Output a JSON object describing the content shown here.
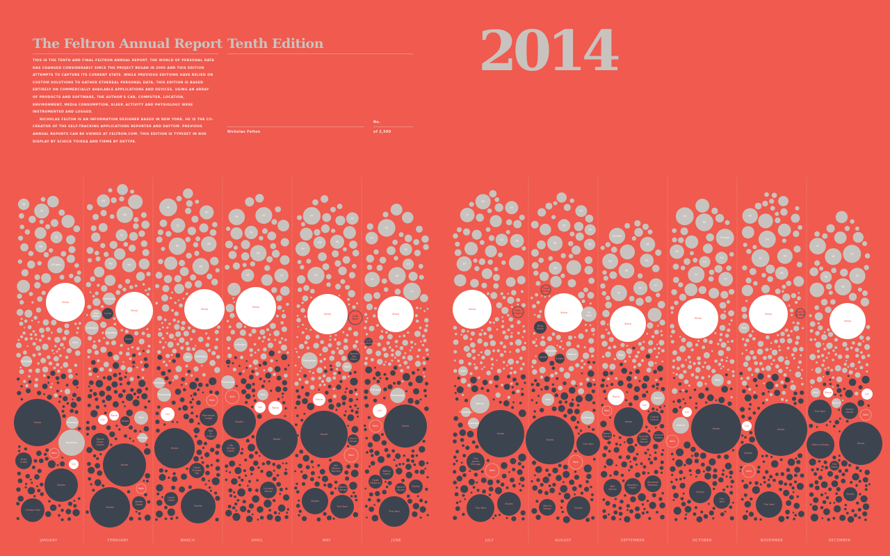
{
  "header": {
    "title": "The Feltron Annual Report",
    "edition": "Tenth Edition",
    "year": "2014",
    "intro": "This is the tenth and final Feltron Annual Report. The world of personal data has changed considerably since the project began in 2005 and this edition attempts to capture its current state. While previous editions have relied on custom solutions to gather ethereal personal data, this edition is based entirely on commercially available applications and devices. Using an array of products and software, the author's car, computer, location, environment, media consumption, sleep, activity and physiology were instrumented and logged.",
    "bio": "Nicholas Felton is an information designer based in New York. He is the co-creator of the self-tracking applications Reporter and Daytum. Previous annual reports can be viewed at feltron.com. This edition is typeset in Noe Display by Schick Toikka and Firme by Dstype.",
    "author": "Nicholas Felton",
    "number_label": "No.",
    "of_count": "of 2,500"
  },
  "colors": {
    "background": "#F05A4F",
    "app_bubble": "#C8C3BE",
    "location_bubble": "#3C4450",
    "sleep_bubble": "#FFFFFF",
    "transport_bubble": "#FFFFFF",
    "walk_ring": "#F7A59D"
  },
  "chart_data": {
    "type": "bubble",
    "months": [
      {
        "name": "January",
        "heart_rate_labels": [
          "50",
          "48",
          "60",
          "53 bpm",
          "52"
        ],
        "bubbles": [
          {
            "label": "Sleep",
            "kind": "sleep"
          },
          {
            "label": "Mail",
            "kind": "app"
          },
          {
            "label": "Facebook",
            "kind": "app"
          },
          {
            "label": "Home",
            "kind": "location"
          },
          {
            "label": "InDesign",
            "kind": "app"
          },
          {
            "label": "Numbers",
            "kind": "app"
          },
          {
            "label": "Walk",
            "kind": "walk"
          },
          {
            "label": "Bras Creek",
            "kind": "location"
          },
          {
            "label": "Car",
            "kind": "transport"
          },
          {
            "label": "Studio",
            "kind": "location"
          },
          {
            "label": "Christa Villa",
            "kind": "location"
          }
        ]
      },
      {
        "name": "February",
        "heart_rate_labels": [
          "48",
          "51",
          "55",
          "60",
          "63"
        ],
        "bubbles": [
          {
            "label": "Sleep",
            "kind": "sleep"
          },
          {
            "label": "Processing",
            "kind": "app"
          },
          {
            "label": "Zen Desk",
            "kind": "app"
          },
          {
            "label": "Lorde",
            "kind": "location"
          },
          {
            "label": "InDesign",
            "kind": "app"
          },
          {
            "label": "Sweetlion",
            "kind": "app"
          },
          {
            "label": "Zoom",
            "kind": "location"
          },
          {
            "label": "Car",
            "kind": "transport"
          },
          {
            "label": "Plane",
            "kind": "transport"
          },
          {
            "label": "Drake",
            "kind": "location"
          },
          {
            "label": "Mail",
            "kind": "app"
          },
          {
            "label": "Facebook",
            "kind": "app"
          },
          {
            "label": "Towne Place Suites",
            "kind": "location"
          },
          {
            "label": "Home",
            "kind": "location"
          },
          {
            "label": "Walk",
            "kind": "walk"
          },
          {
            "label": "Studio",
            "kind": "location"
          },
          {
            "label": "Walter Foods",
            "kind": "location"
          }
        ]
      },
      {
        "name": "March",
        "heart_rate_labels": [
          "64",
          "48",
          "65",
          "66",
          "58",
          "51"
        ],
        "bubbles": [
          {
            "label": "Sleep",
            "kind": "sleep"
          },
          {
            "label": "Mail",
            "kind": "app"
          },
          {
            "label": "InDesign",
            "kind": "app"
          },
          {
            "label": "Processing",
            "kind": "app"
          },
          {
            "label": "Photoshop",
            "kind": "app"
          },
          {
            "label": "Walk",
            "kind": "walk"
          },
          {
            "label": "Car",
            "kind": "transport"
          },
          {
            "label": "Mammoth Lodge",
            "kind": "location"
          },
          {
            "label": "Rob & Elise's",
            "kind": "location"
          },
          {
            "label": "Home",
            "kind": "location"
          },
          {
            "label": "Hotel Theater Figi",
            "kind": "location"
          },
          {
            "label": "Lloyd Hotel",
            "kind": "location"
          },
          {
            "label": "Studio",
            "kind": "location"
          }
        ]
      },
      {
        "name": "April",
        "heart_rate_labels": [
          "60",
          "47",
          "45",
          "58",
          "59",
          "54"
        ],
        "bubbles": [
          {
            "label": "Sleep",
            "kind": "sleep"
          },
          {
            "label": "InDesign",
            "kind": "app"
          },
          {
            "label": "Photoshop",
            "kind": "app"
          },
          {
            "label": "Walk",
            "kind": "walk"
          },
          {
            "label": "Mail",
            "kind": "app"
          },
          {
            "label": "Car",
            "kind": "transport"
          },
          {
            "label": "Plane",
            "kind": "transport"
          },
          {
            "label": "Studio",
            "kind": "location"
          },
          {
            "label": "Home",
            "kind": "location"
          },
          {
            "label": "Life Design Hotel",
            "kind": "location"
          },
          {
            "label": "Lindsey House",
            "kind": "location"
          }
        ]
      },
      {
        "name": "May",
        "heart_rate_labels": [
          "50",
          "41",
          "47",
          "46",
          "48",
          "39"
        ],
        "bubbles": [
          {
            "label": "Sleep",
            "kind": "sleep"
          },
          {
            "label": "Gold Rush",
            "kind": "ring"
          },
          {
            "label": "Photoshop",
            "kind": "app"
          },
          {
            "label": "Sharon Van Etten",
            "kind": "location"
          },
          {
            "label": "Mail",
            "kind": "app"
          },
          {
            "label": "Plane",
            "kind": "transport"
          },
          {
            "label": "Home",
            "kind": "location"
          },
          {
            "label": "Aron's House",
            "kind": "location"
          },
          {
            "label": "Walk",
            "kind": "walk"
          },
          {
            "label": "NH Milano Touring",
            "kind": "location"
          },
          {
            "label": "Mom's House",
            "kind": "location"
          },
          {
            "label": "Studio",
            "kind": "location"
          },
          {
            "label": "The Yard",
            "kind": "location"
          }
        ]
      },
      {
        "name": "June",
        "heart_rate_labels": [
          "46",
          "50",
          "57",
          "59",
          "44",
          "52",
          "42"
        ],
        "bubbles": [
          {
            "label": "Sleep",
            "kind": "sleep"
          },
          {
            "label": "LCD Soundsystem",
            "kind": "location"
          },
          {
            "label": "InDesign",
            "kind": "app"
          },
          {
            "label": "Photoshop",
            "kind": "app"
          },
          {
            "label": "Car",
            "kind": "transport"
          },
          {
            "label": "Walk",
            "kind": "walk"
          },
          {
            "label": "Home",
            "kind": "location"
          },
          {
            "label": "Walker Hotel",
            "kind": "location"
          },
          {
            "label": "Hyatt Regency",
            "kind": "location"
          },
          {
            "label": "Mom's House",
            "kind": "location"
          },
          {
            "label": "Studio",
            "kind": "location"
          },
          {
            "label": "The Yard",
            "kind": "location"
          }
        ]
      },
      {
        "name": "July",
        "heart_rate_labels": [
          "57",
          "58",
          "39",
          "60",
          "52",
          "55"
        ],
        "bubbles": [
          {
            "label": "Sleep",
            "kind": "sleep"
          },
          {
            "label": "Myth Busters",
            "kind": "ring"
          },
          {
            "label": "Mail",
            "kind": "app"
          },
          {
            "label": "Sketch",
            "kind": "app"
          },
          {
            "label": "Processing",
            "kind": "app"
          },
          {
            "label": "InDesign",
            "kind": "app"
          },
          {
            "label": "Home",
            "kind": "location"
          },
          {
            "label": "The James Chicago",
            "kind": "location"
          },
          {
            "label": "Walk",
            "kind": "walk"
          },
          {
            "label": "The Yard",
            "kind": "location"
          },
          {
            "label": "Studio",
            "kind": "location"
          }
        ]
      },
      {
        "name": "August",
        "heart_rate_labels": [
          "58",
          "52",
          "56",
          "57",
          "44",
          "48"
        ],
        "bubbles": [
          {
            "label": "Sleep",
            "kind": "sleep"
          },
          {
            "label": "Dust Sensor",
            "kind": "ring"
          },
          {
            "label": "53 bpm",
            "kind": "app"
          },
          {
            "label": "King Krule",
            "kind": "location"
          },
          {
            "label": "Processing",
            "kind": "app"
          },
          {
            "label": "Kaleb",
            "kind": "location"
          },
          {
            "label": "Jungle",
            "kind": "location"
          },
          {
            "label": "Sketch",
            "kind": "app"
          },
          {
            "label": "Mail",
            "kind": "app"
          },
          {
            "label": "InDesign",
            "kind": "app"
          },
          {
            "label": "Home",
            "kind": "location"
          },
          {
            "label": "The Yard",
            "kind": "location"
          },
          {
            "label": "Walk",
            "kind": "walk"
          },
          {
            "label": "Mom's House",
            "kind": "location"
          },
          {
            "label": "Studio",
            "kind": "location"
          }
        ]
      },
      {
        "name": "September",
        "heart_rate_labels": [
          "45",
          "53 bpm",
          "48",
          "58",
          "55",
          "47",
          "60",
          "54"
        ],
        "bubbles": [
          {
            "label": "Sleep",
            "kind": "sleep"
          },
          {
            "label": "Mail",
            "kind": "app"
          },
          {
            "label": "Plane",
            "kind": "transport"
          },
          {
            "label": "Sketch",
            "kind": "app"
          },
          {
            "label": "Car",
            "kind": "transport"
          },
          {
            "label": "Walk",
            "kind": "walk"
          },
          {
            "label": "Home",
            "kind": "location"
          },
          {
            "label": "Chaud Chaud",
            "kind": "location"
          },
          {
            "label": "Mom's House",
            "kind": "location"
          },
          {
            "label": "Scandic Hotel Marski",
            "kind": "location"
          },
          {
            "label": "Science Gallery",
            "kind": "location"
          },
          {
            "label": "Bell House",
            "kind": "location"
          },
          {
            "label": "Bewley's Hotel",
            "kind": "location"
          },
          {
            "label": "Sheraton Madison",
            "kind": "location"
          }
        ]
      },
      {
        "name": "October",
        "heart_rate_labels": [
          "44",
          "50",
          "57",
          "53 bpm",
          "60",
          "46",
          "52",
          "48"
        ],
        "bubbles": [
          {
            "label": "Sleep",
            "kind": "sleep"
          },
          {
            "label": "Mail",
            "kind": "app"
          },
          {
            "label": "Car",
            "kind": "transport"
          },
          {
            "label": "Sketch",
            "kind": "app"
          },
          {
            "label": "Walk",
            "kind": "walk"
          },
          {
            "label": "Home",
            "kind": "location"
          },
          {
            "label": "Studio",
            "kind": "location"
          },
          {
            "label": "The Yard",
            "kind": "location"
          }
        ]
      },
      {
        "name": "November",
        "heart_rate_labels": [
          "56",
          "52",
          "43",
          "46",
          "54"
        ],
        "bubbles": [
          {
            "label": "Sleep",
            "kind": "sleep"
          },
          {
            "label": "Jimmy Buffett",
            "kind": "ring"
          },
          {
            "label": "Mail",
            "kind": "app"
          },
          {
            "label": "Car",
            "kind": "transport"
          },
          {
            "label": "Studio",
            "kind": "location"
          },
          {
            "label": "Home",
            "kind": "location"
          },
          {
            "label": "Walk",
            "kind": "walk"
          },
          {
            "label": "The Yard",
            "kind": "location"
          }
        ]
      },
      {
        "name": "December",
        "heart_rate_labels": [
          "47",
          "52",
          "48",
          "50",
          "54",
          "56"
        ],
        "bubbles": [
          {
            "label": "Sleep",
            "kind": "sleep"
          },
          {
            "label": "Mail",
            "kind": "app"
          },
          {
            "label": "Plane",
            "kind": "transport"
          },
          {
            "label": "Sketch",
            "kind": "app"
          },
          {
            "label": "Car",
            "kind": "transport"
          },
          {
            "label": "The Yard",
            "kind": "location"
          },
          {
            "label": "Ocean House",
            "kind": "location"
          },
          {
            "label": "Walk",
            "kind": "walk"
          },
          {
            "label": "Mom's House",
            "kind": "location"
          },
          {
            "label": "Home",
            "kind": "location"
          },
          {
            "label": "The Dean",
            "kind": "location"
          },
          {
            "label": "Studio",
            "kind": "location"
          }
        ]
      }
    ]
  }
}
